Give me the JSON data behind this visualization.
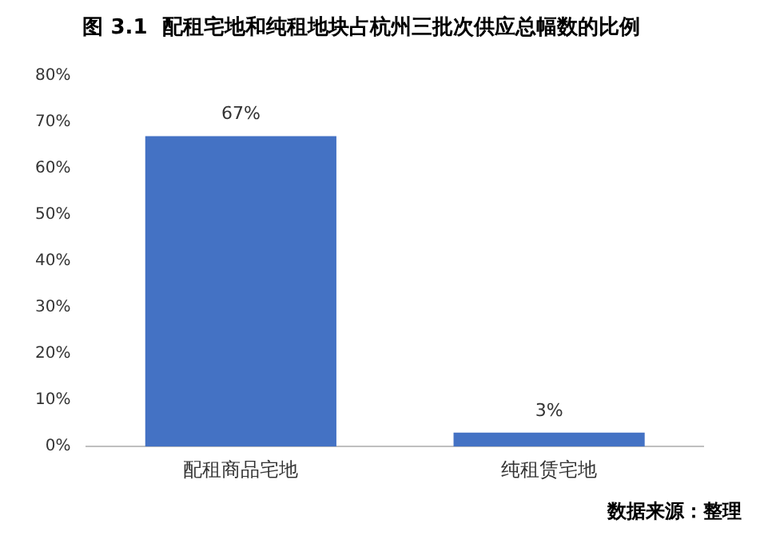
{
  "chart_data": {
    "type": "bar",
    "title": "图 3.1  配租宅地和纯租地块占杭州三批次供应总幅数的比例",
    "categories": [
      "配租商品宅地",
      "纯租赁宅地"
    ],
    "values": [
      67,
      3
    ],
    "color": "#4472c4",
    "value_labels": [
      "67%",
      "3%"
    ],
    "ylim": [
      0,
      80
    ],
    "yticks": [
      {
        "value": 0,
        "label": "0%"
      },
      {
        "value": 10,
        "label": "10%"
      },
      {
        "value": 20,
        "label": "20%"
      },
      {
        "value": 30,
        "label": "30%"
      },
      {
        "value": 40,
        "label": "40%"
      },
      {
        "value": 50,
        "label": "50%"
      },
      {
        "value": 60,
        "label": "60%"
      },
      {
        "value": 70,
        "label": "70%"
      },
      {
        "value": 80,
        "label": "80%"
      }
    ],
    "grid": false,
    "legend": false,
    "annotations": [
      "数据来源：整理"
    ]
  }
}
